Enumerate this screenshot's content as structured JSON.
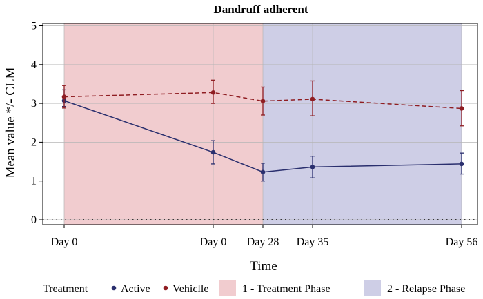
{
  "chart_data": {
    "type": "line",
    "title": "Dandruff adherent",
    "xlabel": "Time",
    "ylabel": "Mean value */- CLM",
    "ylim": [
      0,
      5
    ],
    "yticks": [
      0,
      1,
      2,
      3,
      4,
      5
    ],
    "grid": true,
    "x_tick_labels": [
      "Day 0",
      "Day 0",
      "Day 28",
      "Day 35",
      "Day 56"
    ],
    "x": [
      0,
      30,
      40,
      50,
      80
    ],
    "reference_line": {
      "y": 0,
      "style": "dotted"
    },
    "series": [
      {
        "name": "Active",
        "color": "#2a2f6e",
        "line_style": "solid",
        "points": [
          {
            "x": 0,
            "y": 3.07,
            "lower": 2.92,
            "upper": 3.35
          },
          {
            "x": 30,
            "y": 1.74,
            "lower": 1.44,
            "upper": 2.04
          },
          {
            "x": 40,
            "y": 1.23,
            "lower": 1.0,
            "upper": 1.46
          },
          {
            "x": 50,
            "y": 1.36,
            "lower": 1.08,
            "upper": 1.64
          },
          {
            "x": 80,
            "y": 1.44,
            "lower": 1.18,
            "upper": 1.72
          }
        ]
      },
      {
        "name": "Vehiclle",
        "color": "#8f1d22",
        "line_style": "dashed",
        "points": [
          {
            "x": 0,
            "y": 3.17,
            "lower": 2.88,
            "upper": 3.46
          },
          {
            "x": 30,
            "y": 3.28,
            "lower": 3.0,
            "upper": 3.6
          },
          {
            "x": 40,
            "y": 3.06,
            "lower": 2.7,
            "upper": 3.42
          },
          {
            "x": 50,
            "y": 3.11,
            "lower": 2.68,
            "upper": 3.58
          },
          {
            "x": 80,
            "y": 2.87,
            "lower": 2.42,
            "upper": 3.33
          }
        ]
      }
    ],
    "phases": [
      {
        "label": "1 - Treatment Phase",
        "x_start": 0,
        "x_end": 40,
        "color": "#e6a3a8"
      },
      {
        "label": "2 - Relapse Phase",
        "x_start": 40,
        "x_end": 80,
        "color": "#a6a6d1"
      }
    ],
    "legend": {
      "title": "Treatment",
      "placement": "bottom"
    }
  }
}
